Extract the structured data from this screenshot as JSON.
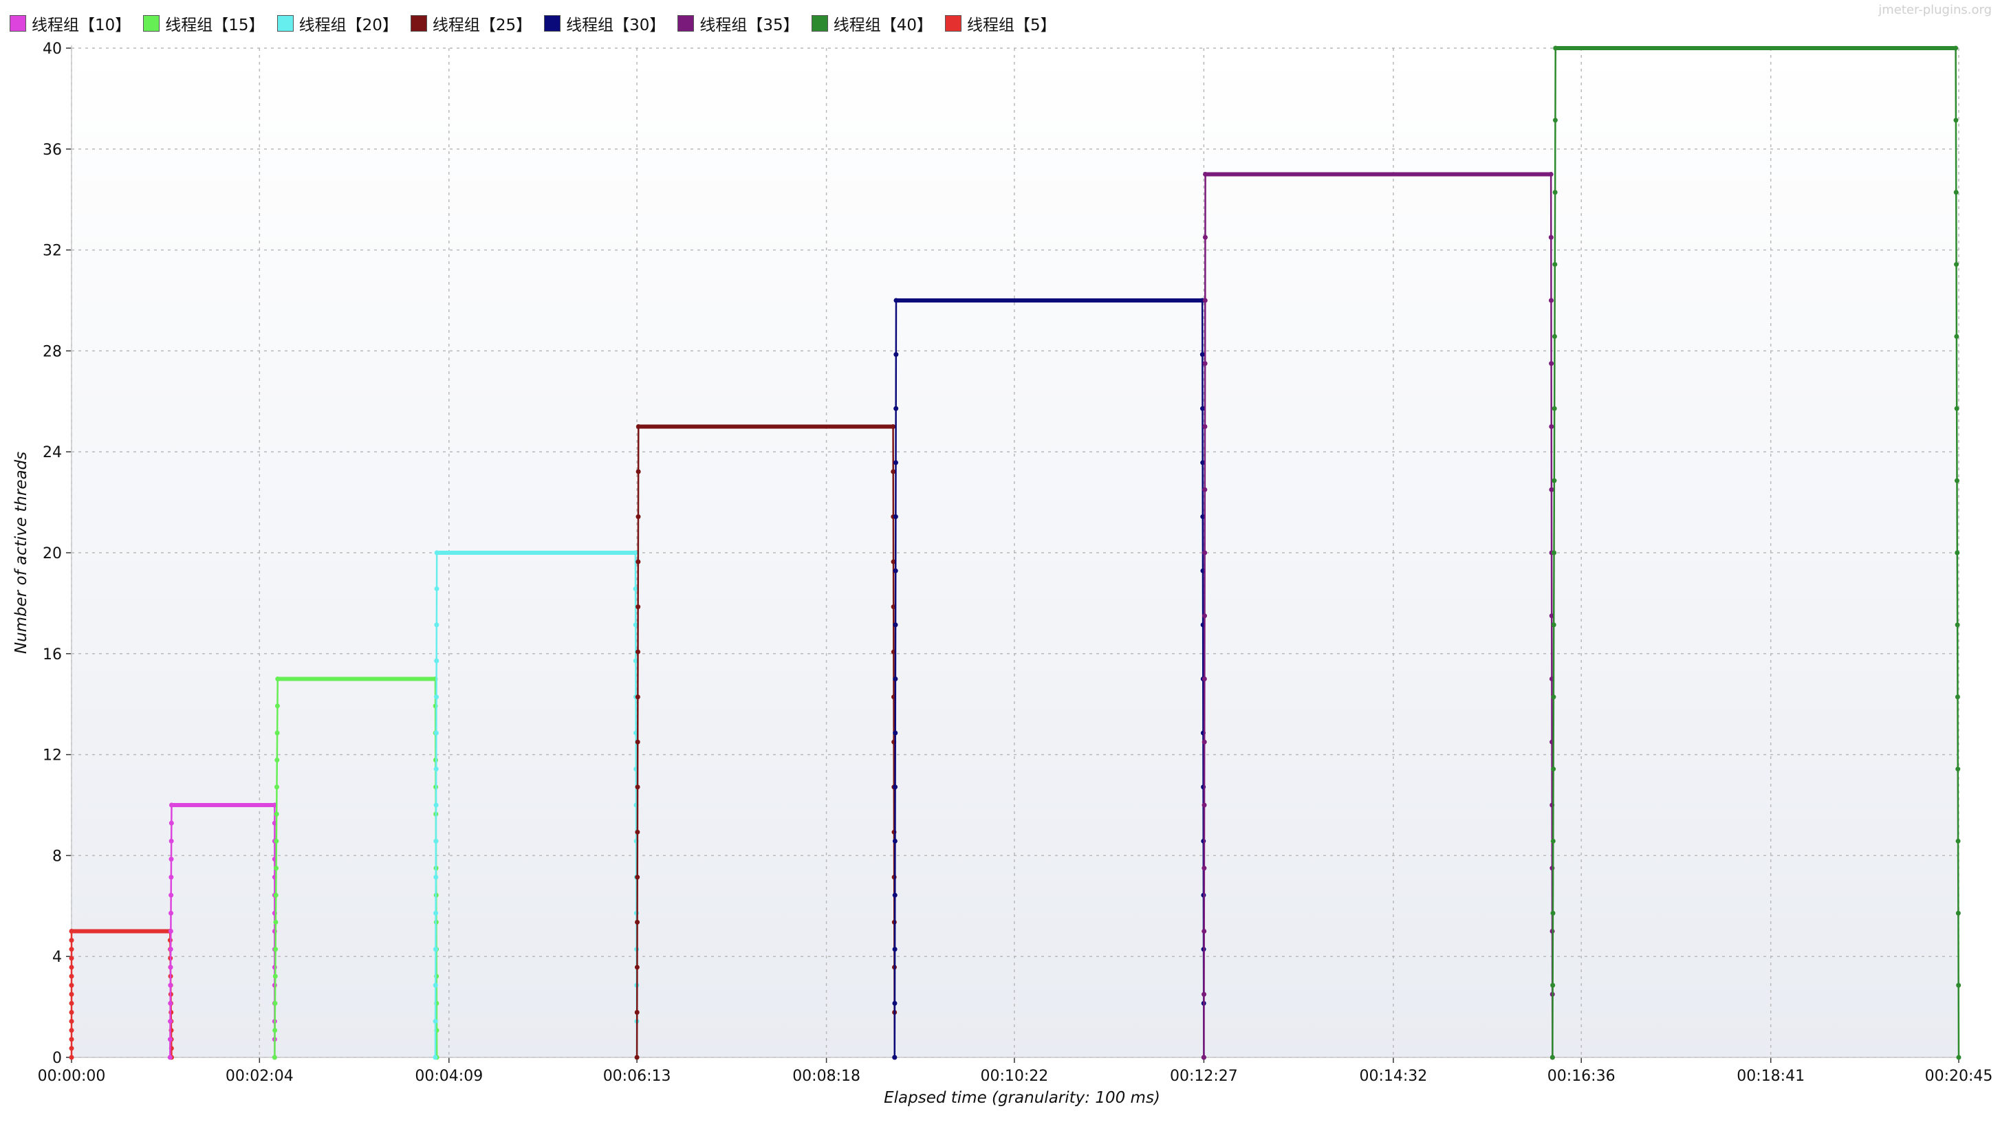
{
  "watermark": "jmeter-plugins.org",
  "chart_data": {
    "type": "line",
    "title": "",
    "xlabel": "Elapsed time (granularity: 100 ms)",
    "ylabel": "Number of active threads",
    "x_unit": "seconds",
    "xlim": [
      0,
      1245
    ],
    "ylim": [
      0,
      40
    ],
    "yticks": [
      0,
      4,
      8,
      12,
      16,
      20,
      24,
      28,
      32,
      36,
      40
    ],
    "xticks": [
      {
        "t": 0,
        "label": "00:00:00"
      },
      {
        "t": 124,
        "label": "00:02:04"
      },
      {
        "t": 249,
        "label": "00:04:09"
      },
      {
        "t": 373,
        "label": "00:06:13"
      },
      {
        "t": 498,
        "label": "00:08:18"
      },
      {
        "t": 622,
        "label": "00:10:22"
      },
      {
        "t": 747,
        "label": "00:12:27"
      },
      {
        "t": 872,
        "label": "00:14:32"
      },
      {
        "t": 996,
        "label": "00:16:36"
      },
      {
        "t": 1121,
        "label": "00:18:41"
      },
      {
        "t": 1245,
        "label": "00:20:45"
      }
    ],
    "grid": true,
    "legend_position": "top-left",
    "legend": [
      {
        "name": "线程组【10】",
        "color": "#dd44dd"
      },
      {
        "name": "线程组【15】",
        "color": "#66ee55"
      },
      {
        "name": "线程组【20】",
        "color": "#66eeee"
      },
      {
        "name": "线程组【25】",
        "color": "#7a1414"
      },
      {
        "name": "线程组【30】",
        "color": "#0a0a7a"
      },
      {
        "name": "线程组【35】",
        "color": "#7a1a7a"
      },
      {
        "name": "线程组【40】",
        "color": "#2e8a2e"
      },
      {
        "name": "线程组【5】",
        "color": "#e53030"
      }
    ],
    "series": [
      {
        "legend_index": 7,
        "color": "#e53030",
        "points": [
          [
            0,
            0
          ],
          [
            0,
            5
          ],
          [
            65,
            5
          ],
          [
            66,
            0
          ]
        ]
      },
      {
        "legend_index": 0,
        "color": "#dd44dd",
        "points": [
          [
            65,
            0
          ],
          [
            66,
            10
          ],
          [
            134,
            10
          ],
          [
            134,
            0
          ]
        ]
      },
      {
        "legend_index": 1,
        "color": "#66ee55",
        "points": [
          [
            134,
            0
          ],
          [
            136,
            15
          ],
          [
            240,
            15
          ],
          [
            241,
            0
          ]
        ]
      },
      {
        "legend_index": 2,
        "color": "#66eeee",
        "points": [
          [
            240,
            0
          ],
          [
            241,
            20
          ],
          [
            372,
            20
          ],
          [
            373,
            0
          ]
        ]
      },
      {
        "legend_index": 3,
        "color": "#7a1414",
        "points": [
          [
            373,
            0
          ],
          [
            374,
            25
          ],
          [
            542,
            25
          ],
          [
            543,
            0
          ]
        ]
      },
      {
        "legend_index": 4,
        "color": "#0a0a7a",
        "points": [
          [
            543,
            0
          ],
          [
            544,
            30
          ],
          [
            746,
            30
          ],
          [
            747,
            0
          ]
        ]
      },
      {
        "legend_index": 5,
        "color": "#7a1a7a",
        "points": [
          [
            747,
            0
          ],
          [
            748,
            35
          ],
          [
            976,
            35
          ],
          [
            977,
            0
          ]
        ]
      },
      {
        "legend_index": 6,
        "color": "#2e8a2e",
        "points": [
          [
            977,
            0
          ],
          [
            979,
            40
          ],
          [
            1243,
            40
          ],
          [
            1245,
            0
          ]
        ]
      }
    ]
  }
}
